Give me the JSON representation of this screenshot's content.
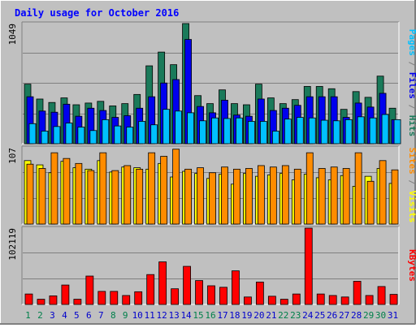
{
  "title": "Daily usage for October 2016",
  "colors": {
    "background": "#c0c0c0",
    "frame_light": "#ffffff",
    "frame_dark": "#808080",
    "title": "#0000ff",
    "hits": "#1a7a5a",
    "files": "#0000ee",
    "pages": "#00c0ff",
    "visits": "#ffff00",
    "sites": "#ff8c00",
    "kbytes": "#ff0000",
    "weekend_label": "#00804a",
    "weekday_label": "#0000cc",
    "grid": "#808080"
  },
  "chart_data": [
    {
      "type": "bar",
      "name": "hits-files-pages",
      "categories": [
        "1",
        "2",
        "3",
        "4",
        "5",
        "6",
        "7",
        "8",
        "9",
        "10",
        "11",
        "12",
        "13",
        "14",
        "15",
        "16",
        "17",
        "18",
        "19",
        "20",
        "21",
        "22",
        "23",
        "24",
        "25",
        "26",
        "27",
        "28",
        "29",
        "30",
        "31"
      ],
      "weekend_days": [
        "1",
        "2",
        "8",
        "9",
        "15",
        "16",
        "22",
        "23",
        "29",
        "30"
      ],
      "ymax_label": "1049",
      "ylim": [
        0,
        1049
      ],
      "series": [
        {
          "name": "Hits",
          "values": [
            520,
            390,
            360,
            400,
            340,
            355,
            370,
            330,
            350,
            430,
            680,
            800,
            690,
            1049,
            420,
            350,
            470,
            350,
            340,
            520,
            400,
            350,
            385,
            500,
            500,
            480,
            300,
            455,
            405,
            590,
            310
          ]
        },
        {
          "name": "Files",
          "values": [
            410,
            285,
            275,
            345,
            240,
            310,
            290,
            230,
            245,
            310,
            410,
            530,
            560,
            910,
            325,
            270,
            380,
            250,
            240,
            390,
            290,
            310,
            335,
            410,
            410,
            410,
            230,
            355,
            320,
            440,
            210
          ]
        },
        {
          "name": "Pages",
          "values": [
            175,
            110,
            150,
            180,
            145,
            115,
            210,
            155,
            145,
            195,
            165,
            300,
            285,
            270,
            200,
            225,
            220,
            225,
            195,
            195,
            110,
            215,
            230,
            225,
            205,
            200,
            210,
            235,
            225,
            255,
            210
          ]
        }
      ]
    },
    {
      "type": "bar",
      "name": "visits-sites",
      "ymax_label": "107",
      "ylim": [
        0,
        107
      ],
      "series": [
        {
          "name": "Visits",
          "values": [
            89,
            83,
            72,
            88,
            79,
            77,
            89,
            73,
            80,
            79,
            77,
            85,
            66,
            74,
            71,
            64,
            70,
            56,
            71,
            67,
            69,
            71,
            62,
            70,
            65,
            62,
            68,
            53,
            67,
            78,
            57
          ]
        },
        {
          "name": "Sites",
          "values": [
            84,
            78,
            100,
            92,
            85,
            75,
            100,
            75,
            82,
            77,
            100,
            95,
            105,
            77,
            79,
            72,
            80,
            77,
            78,
            82,
            80,
            82,
            77,
            100,
            78,
            80,
            78,
            100,
            60,
            89,
            76
          ]
        }
      ]
    },
    {
      "type": "bar",
      "name": "kbytes",
      "ymax_label": "102119",
      "ylim": [
        0,
        102119
      ],
      "series": [
        {
          "name": "KBytes",
          "values": [
            14000,
            7000,
            11500,
            26000,
            7000,
            38000,
            17500,
            17500,
            12000,
            17000,
            40000,
            57000,
            21000,
            51000,
            32000,
            25000,
            23000,
            45000,
            10000,
            30000,
            11000,
            7000,
            14000,
            102119,
            14000,
            12000,
            10000,
            31000,
            12000,
            24000,
            13500
          ]
        }
      ]
    }
  ],
  "legend_right": {
    "top": [
      {
        "text": "Pages",
        "color_key": "pages"
      },
      {
        "text": " / ",
        "color_key": "grid"
      },
      {
        "text": "Files",
        "color_key": "files"
      },
      {
        "text": " / ",
        "color_key": "grid"
      },
      {
        "text": "Hits",
        "color_key": "hits"
      }
    ],
    "middle": [
      {
        "text": "Sites",
        "color_key": "sites"
      },
      {
        "text": " / ",
        "color_key": "grid"
      },
      {
        "text": "Visits",
        "color_key": "visits"
      }
    ],
    "bottom": [
      {
        "text": "KBytes",
        "color_key": "kbytes"
      }
    ]
  }
}
